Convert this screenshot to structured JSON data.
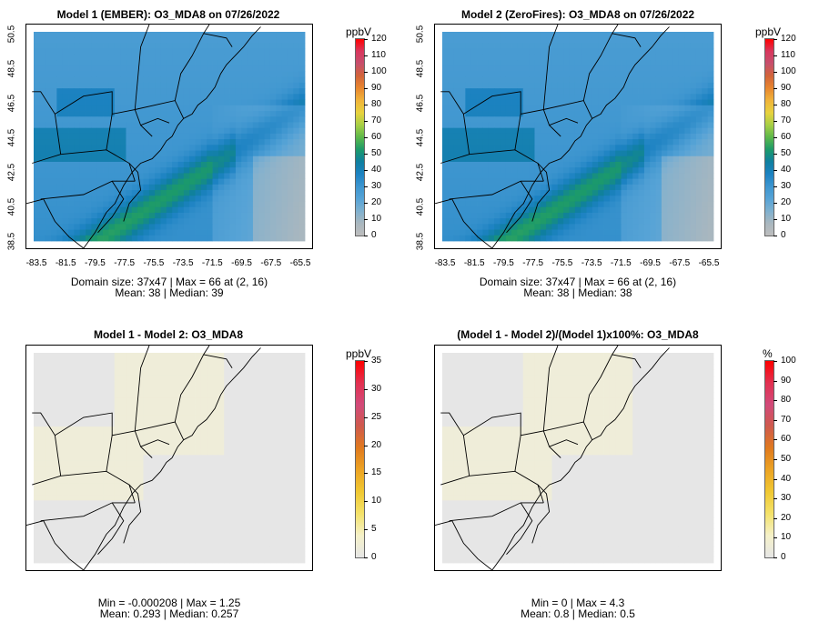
{
  "panels": [
    {
      "title": "Model 1 (EMBER): O3_MDA8 on 07/26/2022",
      "unit": "ppbV",
      "stats": [
        "Domain size: 37x47 | Max = 66 at (2, 16)",
        "Mean: 38 |  Median: 39"
      ],
      "cbar_ticks": [
        "120",
        "110",
        "100",
        "90",
        "80",
        "70",
        "60",
        "50",
        "40",
        "30",
        "20",
        "10",
        "0"
      ],
      "x_ticks": [
        "-83.5",
        "-81.5",
        "-79.5",
        "-77.5",
        "-75.5",
        "-73.5",
        "-71.5",
        "-69.5",
        "-67.5",
        "-65.5"
      ],
      "y_ticks": [
        "38.5",
        "40.5",
        "42.5",
        "44.5",
        "46.5",
        "48.5",
        "50.5"
      ],
      "field": "ozone"
    },
    {
      "title": "Model 2 (ZeroFires): O3_MDA8 on 07/26/2022",
      "unit": "ppbV",
      "stats": [
        "Domain size: 37x47 | Max = 66 at (2, 16)",
        "Mean: 38 |  Median: 38"
      ],
      "cbar_ticks": [
        "120",
        "110",
        "100",
        "90",
        "80",
        "70",
        "60",
        "50",
        "40",
        "30",
        "20",
        "10",
        "0"
      ],
      "x_ticks": [
        "-83.5",
        "-81.5",
        "-79.5",
        "-77.5",
        "-75.5",
        "-73.5",
        "-71.5",
        "-69.5",
        "-67.5",
        "-65.5"
      ],
      "y_ticks": [
        "38.5",
        "40.5",
        "42.5",
        "44.5",
        "46.5",
        "48.5",
        "50.5"
      ],
      "field": "ozone"
    },
    {
      "title": "Model 1 - Model 2: O3_MDA8",
      "unit": "ppbV",
      "stats": [
        "Min = -0.000208 | Max = 1.25",
        "Mean: 0.293 |  Median: 0.257"
      ],
      "cbar_ticks": [
        "35",
        "30",
        "25",
        "20",
        "15",
        "10",
        "5",
        "0"
      ],
      "x_ticks": [],
      "y_ticks": [],
      "field": "diff"
    },
    {
      "title": "(Model 1 - Model 2)/(Model 1)x100%: O3_MDA8",
      "unit": "%",
      "stats": [
        "Min = 0 | Max = 4.3",
        "Mean: 0.8 |  Median: 0.5"
      ],
      "cbar_ticks": [
        "100",
        "90",
        "80",
        "70",
        "60",
        "50",
        "40",
        "30",
        "20",
        "10",
        "0"
      ],
      "x_ticks": [],
      "y_ticks": [],
      "field": "diff"
    }
  ],
  "colors": {
    "ozone_scale": [
      "#bdbdbd",
      "#a9b7bf",
      "#7fb0cf",
      "#56a3d6",
      "#3d95cf",
      "#1c82c2",
      "#0f7fa0",
      "#1c9a6a",
      "#5cb84a",
      "#a8cf45",
      "#e8d23e",
      "#f0b43a",
      "#e8872f",
      "#d2643a",
      "#c64f6c",
      "#d8375e",
      "#ff0000"
    ],
    "diff_scale": [
      "#e6e6e6",
      "#f5f1c9",
      "#f4e26a",
      "#f0c832",
      "#eca424",
      "#e07a1e",
      "#cf5a4c",
      "#d24a7a",
      "#e23050",
      "#ff0000"
    ]
  }
}
